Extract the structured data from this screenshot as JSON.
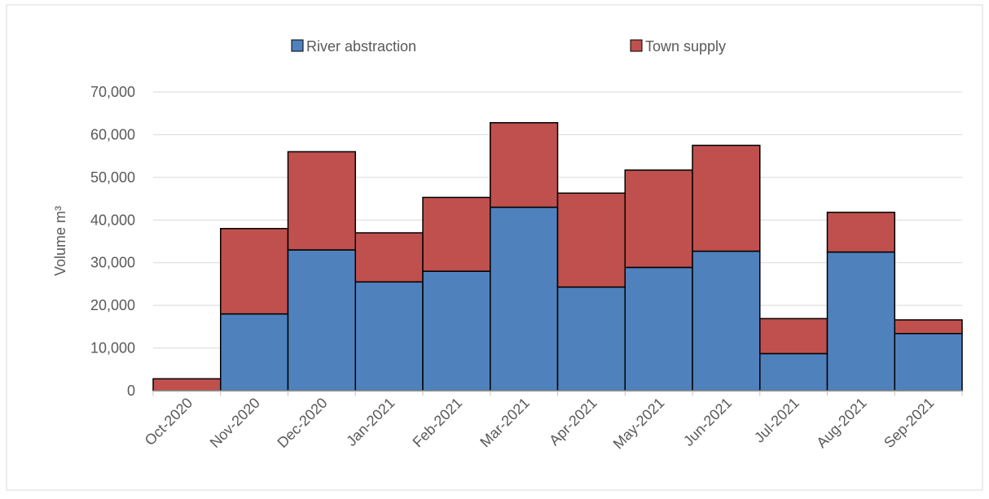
{
  "chart_data": {
    "type": "stacked_bar",
    "categories": [
      "Oct-2020",
      "Nov-2020",
      "Dec-2020",
      "Jan-2021",
      "Feb-2021",
      "Mar-2021",
      "Apr-2021",
      "May-2021",
      "Jun-2021",
      "Jul-2021",
      "Aug-2021",
      "Sep-2021"
    ],
    "series": [
      {
        "name": "River abstraction",
        "color": "#4f81bd",
        "values": [
          0,
          18000,
          33000,
          25500,
          28000,
          43000,
          24300,
          28900,
          32700,
          8700,
          32500,
          13400
        ]
      },
      {
        "name": "Town supply",
        "color": "#c0504d",
        "values": [
          2800,
          20000,
          23000,
          11500,
          17300,
          19800,
          22000,
          22800,
          24800,
          8200,
          9300,
          3200
        ]
      }
    ],
    "y_label": "Volume m³",
    "ylim": [
      0,
      70000
    ],
    "yticks": [
      0,
      {
        "value": 10000,
        "label": "10,000"
      },
      {
        "value": 20000,
        "label": "20,000"
      },
      {
        "value": 30000,
        "label": "30,000"
      },
      {
        "value": 40000,
        "label": "40,000"
      },
      {
        "value": 50000,
        "label": "50,000"
      },
      {
        "value": 60000,
        "label": "60,000"
      },
      {
        "value": 70000,
        "label": "70,000"
      }
    ],
    "grid": true,
    "legend": "top"
  }
}
